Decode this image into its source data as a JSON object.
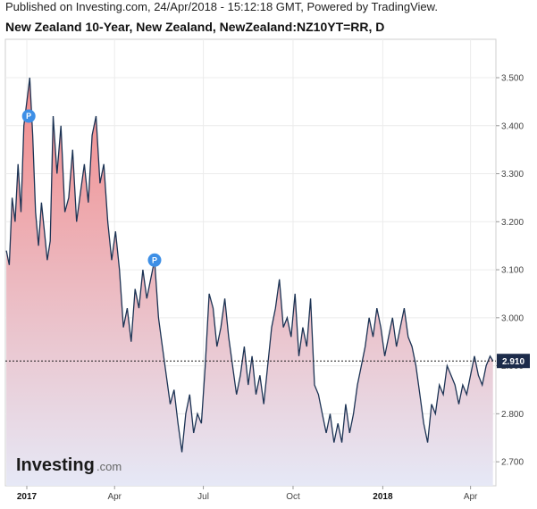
{
  "header": {
    "published": "Published on Investing.com, 24/Apr/2018 - 15:12:18 GMT, Powered by TradingView.",
    "title": "New Zealand 10-Year, New Zealand, NewZealand:NZ10YT=RR, D"
  },
  "logo": {
    "main": "Investing",
    "suffix": ".com"
  },
  "chart_data": {
    "type": "area",
    "title": "New Zealand 10-Year, New Zealand, NewZealand:NZ10YT=RR, D",
    "ylim": [
      2.65,
      3.58
    ],
    "xlim": [
      "2016-12-10",
      "2018-04-27"
    ],
    "y_ticks": [
      "3.500",
      "3.400",
      "3.300",
      "3.200",
      "3.100",
      "3.000",
      "2.900",
      "2.800",
      "2.700"
    ],
    "x_ticks": [
      {
        "date": "2017-01-01",
        "label": "2017",
        "bold": true
      },
      {
        "date": "2017-04-01",
        "label": "Apr",
        "bold": false
      },
      {
        "date": "2017-07-01",
        "label": "Jul",
        "bold": false
      },
      {
        "date": "2017-10-01",
        "label": "Oct",
        "bold": false
      },
      {
        "date": "2018-01-01",
        "label": "2018",
        "bold": true
      },
      {
        "date": "2018-04-01",
        "label": "Apr",
        "bold": false
      }
    ],
    "grid": true,
    "last_value": "2.910",
    "colors": {
      "line": "#1c3354",
      "area_top": "#f28a8a",
      "area_bottom": "#e6e8f6",
      "last_badge": "#1c2b4a",
      "marker": "#3d8fe6"
    },
    "markers": [
      {
        "date": "2017-01-03",
        "value": 3.42,
        "label": "P"
      },
      {
        "date": "2017-05-12",
        "value": 3.12,
        "label": "P"
      }
    ],
    "series": [
      {
        "x": [
          "2016-12-11",
          "2016-12-14",
          "2016-12-17",
          "2016-12-20",
          "2016-12-23",
          "2016-12-26",
          "2016-12-29",
          "2017-01-01",
          "2017-01-04",
          "2017-01-07",
          "2017-01-10",
          "2017-01-13",
          "2017-01-16",
          "2017-01-19",
          "2017-01-22",
          "2017-01-25",
          "2017-01-28",
          "2017-02-01",
          "2017-02-05",
          "2017-02-09",
          "2017-02-13",
          "2017-02-17",
          "2017-02-21",
          "2017-02-25",
          "2017-03-01",
          "2017-03-05",
          "2017-03-09",
          "2017-03-13",
          "2017-03-17",
          "2017-03-21",
          "2017-03-25",
          "2017-03-29",
          "2017-04-02",
          "2017-04-06",
          "2017-04-10",
          "2017-04-14",
          "2017-04-18",
          "2017-04-22",
          "2017-04-26",
          "2017-04-30",
          "2017-05-04",
          "2017-05-08",
          "2017-05-12",
          "2017-05-16",
          "2017-05-20",
          "2017-05-24",
          "2017-05-28",
          "2017-06-01",
          "2017-06-05",
          "2017-06-09",
          "2017-06-13",
          "2017-06-17",
          "2017-06-21",
          "2017-06-25",
          "2017-06-29",
          "2017-07-03",
          "2017-07-07",
          "2017-07-11",
          "2017-07-15",
          "2017-07-19",
          "2017-07-23",
          "2017-07-27",
          "2017-07-31",
          "2017-08-04",
          "2017-08-08",
          "2017-08-12",
          "2017-08-16",
          "2017-08-20",
          "2017-08-24",
          "2017-08-28",
          "2017-09-01",
          "2017-09-05",
          "2017-09-09",
          "2017-09-13",
          "2017-09-17",
          "2017-09-21",
          "2017-09-25",
          "2017-09-29",
          "2017-10-03",
          "2017-10-07",
          "2017-10-11",
          "2017-10-15",
          "2017-10-19",
          "2017-10-23",
          "2017-10-27",
          "2017-10-31",
          "2017-11-04",
          "2017-11-08",
          "2017-11-12",
          "2017-11-16",
          "2017-11-20",
          "2017-11-24",
          "2017-11-28",
          "2017-12-02",
          "2017-12-06",
          "2017-12-10",
          "2017-12-14",
          "2017-12-18",
          "2017-12-22",
          "2017-12-26",
          "2017-12-30",
          "2018-01-03",
          "2018-01-07",
          "2018-01-11",
          "2018-01-15",
          "2018-01-19",
          "2018-01-23",
          "2018-01-27",
          "2018-01-31",
          "2018-02-04",
          "2018-02-08",
          "2018-02-12",
          "2018-02-16",
          "2018-02-20",
          "2018-02-24",
          "2018-02-28",
          "2018-03-04",
          "2018-03-08",
          "2018-03-12",
          "2018-03-16",
          "2018-03-20",
          "2018-03-24",
          "2018-03-28",
          "2018-04-01",
          "2018-04-05",
          "2018-04-09",
          "2018-04-13",
          "2018-04-17",
          "2018-04-21",
          "2018-04-24"
        ],
        "values": [
          3.14,
          3.11,
          3.25,
          3.2,
          3.32,
          3.22,
          3.4,
          3.45,
          3.5,
          3.38,
          3.22,
          3.15,
          3.24,
          3.18,
          3.12,
          3.16,
          3.42,
          3.3,
          3.4,
          3.22,
          3.25,
          3.35,
          3.2,
          3.26,
          3.32,
          3.24,
          3.38,
          3.42,
          3.28,
          3.32,
          3.2,
          3.12,
          3.18,
          3.1,
          2.98,
          3.02,
          2.95,
          3.06,
          3.02,
          3.1,
          3.04,
          3.08,
          3.12,
          3.0,
          2.94,
          2.88,
          2.82,
          2.85,
          2.78,
          2.72,
          2.8,
          2.84,
          2.76,
          2.8,
          2.78,
          2.9,
          3.05,
          3.02,
          2.94,
          2.98,
          3.04,
          2.96,
          2.9,
          2.84,
          2.88,
          2.94,
          2.86,
          2.92,
          2.84,
          2.88,
          2.82,
          2.9,
          2.98,
          3.02,
          3.08,
          2.98,
          3.0,
          2.96,
          3.05,
          2.92,
          2.98,
          2.94,
          3.04,
          2.86,
          2.84,
          2.8,
          2.76,
          2.8,
          2.74,
          2.78,
          2.74,
          2.82,
          2.76,
          2.8,
          2.86,
          2.9,
          2.94,
          3.0,
          2.96,
          3.02,
          2.98,
          2.92,
          2.96,
          3.0,
          2.94,
          2.98,
          3.02,
          2.96,
          2.94,
          2.9,
          2.84,
          2.78,
          2.74,
          2.82,
          2.8,
          2.86,
          2.84,
          2.9,
          2.88,
          2.86,
          2.82,
          2.86,
          2.84,
          2.88,
          2.92,
          2.88,
          2.86,
          2.9,
          2.92,
          2.91
        ]
      }
    ]
  }
}
